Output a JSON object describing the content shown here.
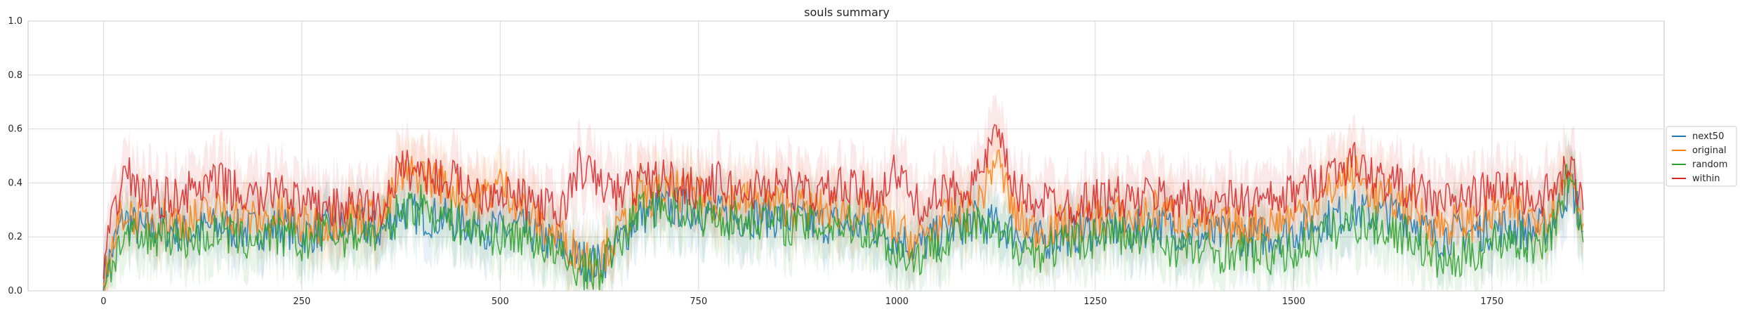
{
  "chart_data": {
    "type": "line",
    "title": "souls summary",
    "xlabel": "",
    "ylabel": "",
    "xlim": [
      -95,
      1967
    ],
    "ylim": [
      0,
      1.0
    ],
    "xticks": [
      0,
      250,
      500,
      750,
      1000,
      1250,
      1500,
      1750
    ],
    "yticks": [
      0.0,
      0.2,
      0.4,
      0.6,
      0.8,
      1.0
    ],
    "grid": true,
    "legend_position": "outside-right",
    "series": [
      {
        "name": "next50",
        "color": "#1f77b4",
        "x": [
          0,
          25,
          50,
          75,
          100,
          125,
          150,
          175,
          200,
          225,
          250,
          275,
          300,
          325,
          350,
          375,
          400,
          425,
          450,
          475,
          500,
          525,
          550,
          575,
          600,
          625,
          650,
          675,
          700,
          725,
          750,
          775,
          800,
          825,
          850,
          875,
          900,
          925,
          950,
          975,
          1000,
          1025,
          1050,
          1075,
          1100,
          1125,
          1150,
          1175,
          1200,
          1225,
          1250,
          1275,
          1300,
          1325,
          1350,
          1375,
          1400,
          1425,
          1450,
          1475,
          1500,
          1525,
          1550,
          1575,
          1600,
          1625,
          1650,
          1675,
          1700,
          1725,
          1750,
          1775,
          1800,
          1825,
          1850,
          1865
        ],
        "values": [
          0.05,
          0.27,
          0.22,
          0.24,
          0.21,
          0.23,
          0.24,
          0.22,
          0.23,
          0.24,
          0.21,
          0.22,
          0.23,
          0.24,
          0.22,
          0.3,
          0.28,
          0.27,
          0.25,
          0.24,
          0.22,
          0.23,
          0.2,
          0.16,
          0.12,
          0.1,
          0.18,
          0.28,
          0.3,
          0.31,
          0.3,
          0.28,
          0.27,
          0.28,
          0.27,
          0.26,
          0.25,
          0.25,
          0.24,
          0.23,
          0.2,
          0.16,
          0.2,
          0.24,
          0.26,
          0.24,
          0.22,
          0.18,
          0.2,
          0.21,
          0.23,
          0.23,
          0.22,
          0.25,
          0.23,
          0.21,
          0.2,
          0.21,
          0.2,
          0.21,
          0.22,
          0.25,
          0.27,
          0.3,
          0.28,
          0.29,
          0.27,
          0.2,
          0.21,
          0.22,
          0.23,
          0.24,
          0.22,
          0.25,
          0.4,
          0.22
        ]
      },
      {
        "name": "original",
        "color": "#ff7f0e",
        "x": [
          0,
          25,
          50,
          75,
          100,
          125,
          150,
          175,
          200,
          225,
          250,
          275,
          300,
          325,
          350,
          375,
          400,
          425,
          450,
          475,
          500,
          525,
          550,
          575,
          600,
          625,
          650,
          675,
          700,
          725,
          750,
          775,
          800,
          825,
          850,
          875,
          900,
          925,
          950,
          975,
          1000,
          1025,
          1050,
          1075,
          1100,
          1125,
          1150,
          1175,
          1200,
          1225,
          1250,
          1275,
          1300,
          1325,
          1350,
          1375,
          1400,
          1425,
          1450,
          1475,
          1500,
          1525,
          1550,
          1575,
          1600,
          1625,
          1650,
          1675,
          1700,
          1725,
          1750,
          1775,
          1800,
          1825,
          1850,
          1865
        ],
        "values": [
          0.05,
          0.3,
          0.26,
          0.28,
          0.25,
          0.28,
          0.3,
          0.27,
          0.26,
          0.28,
          0.24,
          0.25,
          0.27,
          0.28,
          0.26,
          0.42,
          0.44,
          0.4,
          0.36,
          0.34,
          0.4,
          0.32,
          0.24,
          0.2,
          0.14,
          0.12,
          0.22,
          0.34,
          0.36,
          0.37,
          0.35,
          0.33,
          0.34,
          0.33,
          0.32,
          0.31,
          0.3,
          0.3,
          0.29,
          0.28,
          0.22,
          0.18,
          0.24,
          0.29,
          0.3,
          0.5,
          0.27,
          0.22,
          0.24,
          0.25,
          0.27,
          0.28,
          0.26,
          0.3,
          0.28,
          0.25,
          0.23,
          0.24,
          0.25,
          0.25,
          0.28,
          0.32,
          0.38,
          0.44,
          0.36,
          0.33,
          0.32,
          0.24,
          0.25,
          0.26,
          0.28,
          0.3,
          0.27,
          0.3,
          0.45,
          0.25
        ]
      },
      {
        "name": "random",
        "color": "#2ca02c",
        "x": [
          0,
          25,
          50,
          75,
          100,
          125,
          150,
          175,
          200,
          225,
          250,
          275,
          300,
          325,
          350,
          375,
          400,
          425,
          450,
          475,
          500,
          525,
          550,
          575,
          600,
          625,
          650,
          675,
          700,
          725,
          750,
          775,
          800,
          825,
          850,
          875,
          900,
          925,
          950,
          975,
          1000,
          1025,
          1050,
          1075,
          1100,
          1125,
          1150,
          1175,
          1200,
          1225,
          1250,
          1275,
          1300,
          1325,
          1350,
          1375,
          1400,
          1425,
          1450,
          1475,
          1500,
          1525,
          1550,
          1575,
          1600,
          1625,
          1650,
          1675,
          1700,
          1725,
          1750,
          1775,
          1800,
          1825,
          1850,
          1865
        ],
        "values": [
          0.03,
          0.2,
          0.18,
          0.22,
          0.19,
          0.2,
          0.22,
          0.18,
          0.21,
          0.2,
          0.17,
          0.22,
          0.2,
          0.22,
          0.2,
          0.3,
          0.32,
          0.28,
          0.24,
          0.22,
          0.2,
          0.21,
          0.18,
          0.12,
          0.08,
          0.08,
          0.18,
          0.3,
          0.32,
          0.3,
          0.28,
          0.27,
          0.26,
          0.27,
          0.25,
          0.24,
          0.24,
          0.25,
          0.24,
          0.21,
          0.14,
          0.12,
          0.18,
          0.22,
          0.24,
          0.2,
          0.18,
          0.14,
          0.16,
          0.18,
          0.2,
          0.22,
          0.18,
          0.2,
          0.16,
          0.15,
          0.14,
          0.15,
          0.14,
          0.13,
          0.14,
          0.2,
          0.22,
          0.26,
          0.24,
          0.22,
          0.2,
          0.12,
          0.1,
          0.14,
          0.18,
          0.2,
          0.16,
          0.22,
          0.45,
          0.18
        ]
      },
      {
        "name": "within",
        "color": "#d62728",
        "x": [
          0,
          25,
          50,
          75,
          100,
          125,
          150,
          175,
          200,
          225,
          250,
          275,
          300,
          325,
          350,
          375,
          400,
          425,
          450,
          475,
          500,
          525,
          550,
          575,
          600,
          625,
          650,
          675,
          700,
          725,
          750,
          775,
          800,
          825,
          850,
          875,
          900,
          925,
          950,
          975,
          1000,
          1025,
          1050,
          1075,
          1100,
          1125,
          1150,
          1175,
          1200,
          1225,
          1250,
          1275,
          1300,
          1325,
          1350,
          1375,
          1400,
          1425,
          1450,
          1475,
          1500,
          1525,
          1550,
          1575,
          1600,
          1625,
          1650,
          1675,
          1700,
          1725,
          1750,
          1775,
          1800,
          1825,
          1850,
          1865
        ],
        "values": [
          0.08,
          0.45,
          0.36,
          0.34,
          0.36,
          0.38,
          0.4,
          0.35,
          0.34,
          0.4,
          0.3,
          0.32,
          0.3,
          0.32,
          0.3,
          0.46,
          0.44,
          0.42,
          0.4,
          0.36,
          0.38,
          0.34,
          0.32,
          0.28,
          0.46,
          0.4,
          0.36,
          0.4,
          0.42,
          0.4,
          0.38,
          0.4,
          0.36,
          0.38,
          0.4,
          0.37,
          0.36,
          0.38,
          0.37,
          0.36,
          0.44,
          0.32,
          0.34,
          0.38,
          0.4,
          0.58,
          0.36,
          0.34,
          0.33,
          0.32,
          0.34,
          0.35,
          0.33,
          0.36,
          0.34,
          0.33,
          0.32,
          0.34,
          0.33,
          0.33,
          0.36,
          0.4,
          0.45,
          0.48,
          0.42,
          0.4,
          0.38,
          0.34,
          0.33,
          0.35,
          0.37,
          0.38,
          0.34,
          0.36,
          0.46,
          0.3
        ]
      }
    ]
  }
}
